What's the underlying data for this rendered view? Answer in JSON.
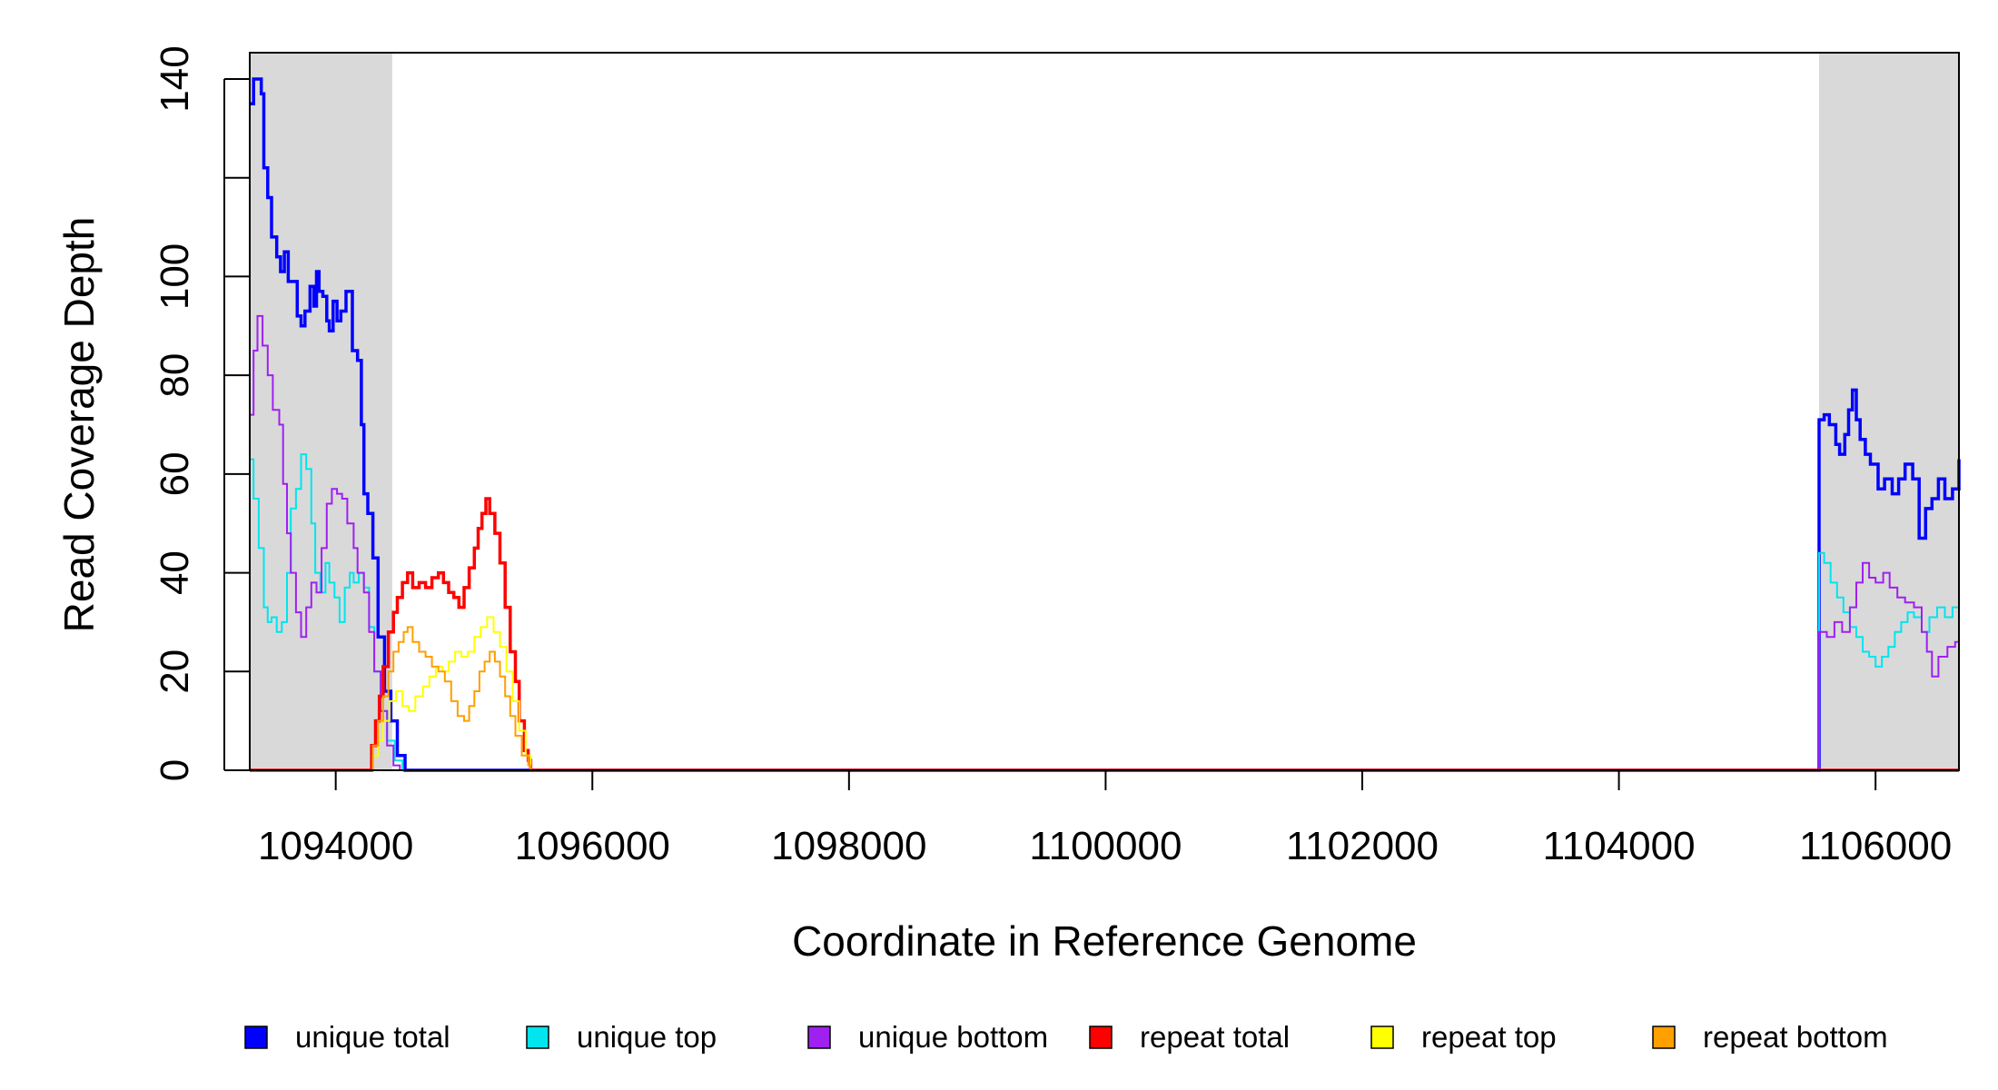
{
  "chart_data": {
    "type": "line",
    "title": "",
    "xlabel": "Coordinate in Reference Genome",
    "ylabel": "Read Coverage Depth",
    "xlim": [
      1093330,
      1106650
    ],
    "ylim": [
      0,
      145
    ],
    "x_ticks": [
      1094000,
      1096000,
      1098000,
      1100000,
      1102000,
      1104000,
      1106000
    ],
    "x_tick_labels": [
      "1094000",
      "1096000",
      "1098000",
      "1100000",
      "1102000",
      "1104000",
      "1106000"
    ],
    "y_ticks": [
      0,
      20,
      40,
      60,
      80,
      100,
      120,
      140
    ],
    "y_tick_labels": [
      "0",
      "20",
      "40",
      "60",
      "80",
      "100",
      "",
      "140"
    ],
    "shaded_regions": [
      [
        1093330,
        1094440
      ],
      [
        1105560,
        1106650
      ]
    ],
    "shade_color": "#d9d9d9",
    "legend_position": "bottom",
    "series": [
      {
        "name": "unique total",
        "color": "#0000ff",
        "points": [
          [
            1093330,
            135
          ],
          [
            1093360,
            140
          ],
          [
            1093420,
            137
          ],
          [
            1093440,
            122
          ],
          [
            1093470,
            116
          ],
          [
            1093500,
            108
          ],
          [
            1093540,
            104
          ],
          [
            1093570,
            101
          ],
          [
            1093600,
            105
          ],
          [
            1093630,
            99
          ],
          [
            1093660,
            99
          ],
          [
            1093700,
            92
          ],
          [
            1093730,
            90
          ],
          [
            1093760,
            93
          ],
          [
            1093800,
            98
          ],
          [
            1093830,
            94
          ],
          [
            1093850,
            101
          ],
          [
            1093870,
            97
          ],
          [
            1093900,
            96
          ],
          [
            1093930,
            91
          ],
          [
            1093950,
            89
          ],
          [
            1093980,
            95
          ],
          [
            1094010,
            91
          ],
          [
            1094040,
            93
          ],
          [
            1094080,
            97
          ],
          [
            1094130,
            85
          ],
          [
            1094170,
            83
          ],
          [
            1094200,
            70
          ],
          [
            1094220,
            56
          ],
          [
            1094250,
            52
          ],
          [
            1094290,
            43
          ],
          [
            1094330,
            27
          ],
          [
            1094380,
            16
          ],
          [
            1094430,
            10
          ],
          [
            1094480,
            3
          ],
          [
            1094540,
            0
          ],
          [
            1105550,
            0
          ],
          [
            1105560,
            71
          ],
          [
            1105600,
            72
          ],
          [
            1105640,
            70
          ],
          [
            1105690,
            66
          ],
          [
            1105720,
            64
          ],
          [
            1105760,
            68
          ],
          [
            1105790,
            73
          ],
          [
            1105820,
            77
          ],
          [
            1105850,
            71
          ],
          [
            1105880,
            67
          ],
          [
            1105920,
            64
          ],
          [
            1105960,
            62
          ],
          [
            1106020,
            57
          ],
          [
            1106070,
            59
          ],
          [
            1106130,
            56
          ],
          [
            1106180,
            59
          ],
          [
            1106230,
            62
          ],
          [
            1106290,
            59
          ],
          [
            1106340,
            47
          ],
          [
            1106390,
            53
          ],
          [
            1106440,
            55
          ],
          [
            1106490,
            59
          ],
          [
            1106540,
            55
          ],
          [
            1106600,
            57
          ],
          [
            1106650,
            63
          ]
        ]
      },
      {
        "name": "unique top",
        "color": "#00e5ee",
        "points": [
          [
            1093330,
            63
          ],
          [
            1093360,
            55
          ],
          [
            1093400,
            45
          ],
          [
            1093440,
            33
          ],
          [
            1093470,
            30
          ],
          [
            1093500,
            31
          ],
          [
            1093540,
            28
          ],
          [
            1093580,
            30
          ],
          [
            1093620,
            40
          ],
          [
            1093650,
            53
          ],
          [
            1093690,
            57
          ],
          [
            1093730,
            64
          ],
          [
            1093770,
            61
          ],
          [
            1093810,
            50
          ],
          [
            1093840,
            40
          ],
          [
            1093880,
            36
          ],
          [
            1093920,
            42
          ],
          [
            1093950,
            38
          ],
          [
            1093990,
            35
          ],
          [
            1094030,
            30
          ],
          [
            1094070,
            37
          ],
          [
            1094110,
            40
          ],
          [
            1094140,
            38
          ],
          [
            1094180,
            40
          ],
          [
            1094220,
            37
          ],
          [
            1094260,
            29
          ],
          [
            1094300,
            20
          ],
          [
            1094350,
            12
          ],
          [
            1094400,
            6
          ],
          [
            1094460,
            2
          ],
          [
            1094520,
            0
          ],
          [
            1105550,
            0
          ],
          [
            1105560,
            44
          ],
          [
            1105600,
            42
          ],
          [
            1105650,
            38
          ],
          [
            1105700,
            35
          ],
          [
            1105750,
            32
          ],
          [
            1105800,
            29
          ],
          [
            1105850,
            27
          ],
          [
            1105900,
            24
          ],
          [
            1105950,
            23
          ],
          [
            1106000,
            21
          ],
          [
            1106050,
            23
          ],
          [
            1106100,
            25
          ],
          [
            1106150,
            28
          ],
          [
            1106200,
            30
          ],
          [
            1106250,
            32
          ],
          [
            1106300,
            31
          ],
          [
            1106360,
            28
          ],
          [
            1106420,
            31
          ],
          [
            1106480,
            33
          ],
          [
            1106540,
            31
          ],
          [
            1106600,
            33
          ],
          [
            1106650,
            32
          ]
        ]
      },
      {
        "name": "unique bottom",
        "color": "#a020f0",
        "points": [
          [
            1093330,
            72
          ],
          [
            1093360,
            85
          ],
          [
            1093390,
            92
          ],
          [
            1093430,
            86
          ],
          [
            1093470,
            80
          ],
          [
            1093510,
            73
          ],
          [
            1093560,
            70
          ],
          [
            1093590,
            58
          ],
          [
            1093620,
            48
          ],
          [
            1093650,
            40
          ],
          [
            1093690,
            32
          ],
          [
            1093730,
            27
          ],
          [
            1093770,
            33
          ],
          [
            1093810,
            38
          ],
          [
            1093850,
            36
          ],
          [
            1093890,
            45
          ],
          [
            1093930,
            54
          ],
          [
            1093970,
            57
          ],
          [
            1094010,
            56
          ],
          [
            1094050,
            55
          ],
          [
            1094090,
            50
          ],
          [
            1094140,
            45
          ],
          [
            1094170,
            40
          ],
          [
            1094220,
            36
          ],
          [
            1094260,
            28
          ],
          [
            1094300,
            20
          ],
          [
            1094350,
            12
          ],
          [
            1094400,
            5
          ],
          [
            1094450,
            1
          ],
          [
            1094500,
            0
          ],
          [
            1105550,
            0
          ],
          [
            1105560,
            28
          ],
          [
            1105620,
            27
          ],
          [
            1105680,
            30
          ],
          [
            1105740,
            28
          ],
          [
            1105800,
            33
          ],
          [
            1105850,
            38
          ],
          [
            1105900,
            42
          ],
          [
            1105950,
            39
          ],
          [
            1106000,
            38
          ],
          [
            1106060,
            40
          ],
          [
            1106110,
            37
          ],
          [
            1106170,
            35
          ],
          [
            1106230,
            34
          ],
          [
            1106300,
            33
          ],
          [
            1106360,
            28
          ],
          [
            1106400,
            24
          ],
          [
            1106440,
            19
          ],
          [
            1106490,
            23
          ],
          [
            1106560,
            25
          ],
          [
            1106620,
            26
          ],
          [
            1106650,
            26
          ]
        ]
      },
      {
        "name": "repeat total",
        "color": "#ff0000",
        "points": [
          [
            1093330,
            0
          ],
          [
            1094260,
            0
          ],
          [
            1094280,
            5
          ],
          [
            1094310,
            10
          ],
          [
            1094340,
            15
          ],
          [
            1094370,
            21
          ],
          [
            1094410,
            28
          ],
          [
            1094450,
            32
          ],
          [
            1094480,
            35
          ],
          [
            1094520,
            38
          ],
          [
            1094560,
            40
          ],
          [
            1094600,
            37
          ],
          [
            1094650,
            38
          ],
          [
            1094700,
            37
          ],
          [
            1094750,
            39
          ],
          [
            1094800,
            40
          ],
          [
            1094840,
            38
          ],
          [
            1094880,
            36
          ],
          [
            1094920,
            35
          ],
          [
            1094960,
            33
          ],
          [
            1095000,
            37
          ],
          [
            1095040,
            41
          ],
          [
            1095080,
            45
          ],
          [
            1095110,
            49
          ],
          [
            1095140,
            52
          ],
          [
            1095170,
            55
          ],
          [
            1095200,
            52
          ],
          [
            1095240,
            48
          ],
          [
            1095280,
            42
          ],
          [
            1095320,
            33
          ],
          [
            1095360,
            24
          ],
          [
            1095400,
            18
          ],
          [
            1095430,
            10
          ],
          [
            1095470,
            4
          ],
          [
            1095500,
            2
          ],
          [
            1095520,
            0
          ],
          [
            1106650,
            0
          ]
        ]
      },
      {
        "name": "repeat top",
        "color": "#ffff00",
        "points": [
          [
            1093330,
            0
          ],
          [
            1094260,
            0
          ],
          [
            1094290,
            3
          ],
          [
            1094330,
            6
          ],
          [
            1094370,
            10
          ],
          [
            1094420,
            14
          ],
          [
            1094470,
            16
          ],
          [
            1094520,
            13
          ],
          [
            1094570,
            12
          ],
          [
            1094620,
            15
          ],
          [
            1094680,
            17
          ],
          [
            1094730,
            19
          ],
          [
            1094780,
            21
          ],
          [
            1094830,
            20
          ],
          [
            1094880,
            22
          ],
          [
            1094930,
            24
          ],
          [
            1094980,
            23
          ],
          [
            1095030,
            24
          ],
          [
            1095080,
            27
          ],
          [
            1095130,
            29
          ],
          [
            1095180,
            31
          ],
          [
            1095230,
            28
          ],
          [
            1095280,
            25
          ],
          [
            1095330,
            20
          ],
          [
            1095380,
            14
          ],
          [
            1095430,
            8
          ],
          [
            1095480,
            3
          ],
          [
            1095520,
            0
          ],
          [
            1106650,
            0
          ]
        ]
      },
      {
        "name": "repeat bottom",
        "color": "#ff9f00",
        "points": [
          [
            1093330,
            0
          ],
          [
            1094260,
            0
          ],
          [
            1094290,
            5
          ],
          [
            1094330,
            10
          ],
          [
            1094370,
            15
          ],
          [
            1094410,
            20
          ],
          [
            1094450,
            24
          ],
          [
            1094490,
            26
          ],
          [
            1094530,
            28
          ],
          [
            1094560,
            29
          ],
          [
            1094600,
            26
          ],
          [
            1094650,
            24
          ],
          [
            1094700,
            23
          ],
          [
            1094750,
            21
          ],
          [
            1094800,
            20
          ],
          [
            1094850,
            18
          ],
          [
            1094900,
            14
          ],
          [
            1094950,
            11
          ],
          [
            1095000,
            10
          ],
          [
            1095040,
            13
          ],
          [
            1095080,
            16
          ],
          [
            1095120,
            20
          ],
          [
            1095160,
            22
          ],
          [
            1095200,
            24
          ],
          [
            1095240,
            22
          ],
          [
            1095280,
            19
          ],
          [
            1095320,
            15
          ],
          [
            1095360,
            11
          ],
          [
            1095400,
            7
          ],
          [
            1095450,
            3
          ],
          [
            1095500,
            1
          ],
          [
            1095520,
            0
          ],
          [
            1106650,
            0
          ]
        ]
      }
    ]
  },
  "legend": {
    "items": [
      {
        "label": "unique total",
        "color": "#0000ff"
      },
      {
        "label": "unique top",
        "color": "#00e5ee"
      },
      {
        "label": "unique bottom",
        "color": "#a020f0"
      },
      {
        "label": "repeat total",
        "color": "#ff0000"
      },
      {
        "label": "repeat top",
        "color": "#ffff00"
      },
      {
        "label": "repeat bottom",
        "color": "#ff9f00"
      }
    ]
  }
}
